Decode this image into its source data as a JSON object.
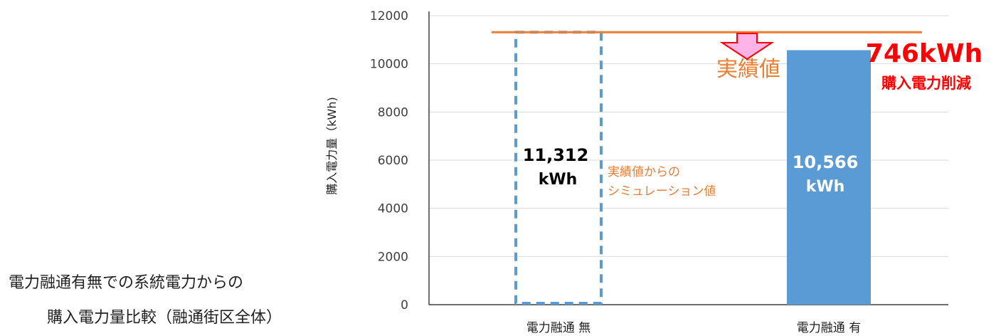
{
  "caption": {
    "line1": "電力融通有無での系統電力からの",
    "line2": "購入電力量比較（融通街区全体）"
  },
  "chart_data": {
    "type": "bar",
    "categories": [
      "電力融通 無",
      "電力融通 有"
    ],
    "values": [
      11312,
      10566
    ],
    "ylabel": "購入電力量（kWh)",
    "xlabel": "",
    "ylim": [
      0,
      12000
    ],
    "yticks": [
      "0",
      "2000",
      "4000",
      "6000",
      "8000",
      "10000",
      "12000"
    ],
    "grid": true,
    "bar_labels": [
      {
        "line1": "11,312",
        "line2": "kWh"
      },
      {
        "line1": "10,566",
        "line2": "kWh"
      }
    ],
    "bar_styles": [
      "dashed-outline",
      "solid"
    ],
    "colors": {
      "bar": "#5b9bd5",
      "reference_line": "#ed7d31",
      "highlight": "#ff0000",
      "arrow_fill": "#ffb3e6"
    },
    "reference_line": {
      "value": 11312,
      "label": "実績値"
    },
    "simulation_note": {
      "line1": "実績値からの",
      "line2": "シミュレーション値"
    },
    "reduction": {
      "value": "746kWh",
      "label": "購入電力削減"
    }
  }
}
